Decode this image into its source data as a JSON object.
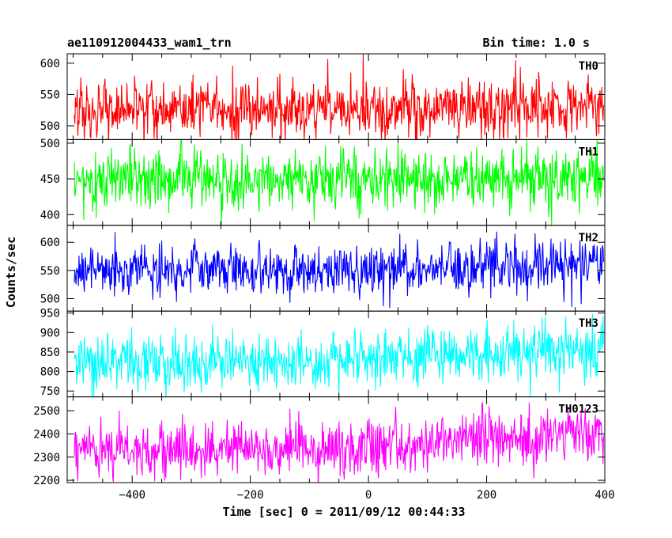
{
  "header": {
    "obs_id": "ae110912004433_wam1_trn",
    "bin_time": "Bin time: 1.0 s"
  },
  "axes": {
    "ylabel": "Counts/sec",
    "xlabel": "Time [sec] 0 = 2011/09/12 00:44:33"
  },
  "colors": {
    "TH0": "#ff0000",
    "TH1": "#00ff00",
    "TH2": "#0000ff",
    "TH3": "#00ffff",
    "TH0123": "#ff00ff",
    "frame": "#000000"
  },
  "chart_data": {
    "type": "line",
    "x_range": [
      -510,
      400
    ],
    "x_ticks": [
      -400,
      -200,
      0,
      200,
      400
    ],
    "x_tick_labels": [
      "−400",
      "−200",
      "0",
      "200",
      "400"
    ],
    "bin_seconds": 1.0,
    "panels": [
      {
        "name": "TH0",
        "ylim": [
          478,
          615
        ],
        "yticks": [
          500,
          550,
          600
        ],
        "trend": [
          [
            -500,
            525
          ],
          [
            -300,
            525
          ],
          [
            -100,
            530
          ],
          [
            0,
            525
          ],
          [
            100,
            528
          ],
          [
            200,
            530
          ],
          [
            300,
            533
          ],
          [
            400,
            533
          ]
        ],
        "noise_sd": 24
      },
      {
        "name": "TH1",
        "ylim": [
          385,
          505
        ],
        "yticks": [
          400,
          450,
          500
        ],
        "trend": [
          [
            -500,
            449
          ],
          [
            -300,
            451
          ],
          [
            -100,
            450
          ],
          [
            0,
            449
          ],
          [
            100,
            451
          ],
          [
            200,
            452
          ],
          [
            300,
            450
          ],
          [
            400,
            451
          ]
        ],
        "noise_sd": 21
      },
      {
        "name": "TH2",
        "ylim": [
          478,
          630
        ],
        "yticks": [
          500,
          550,
          600
        ],
        "trend": [
          [
            -500,
            550
          ],
          [
            -300,
            551
          ],
          [
            -100,
            552
          ],
          [
            0,
            552
          ],
          [
            100,
            554
          ],
          [
            200,
            556
          ],
          [
            300,
            558
          ],
          [
            400,
            559
          ]
        ],
        "noise_sd": 22
      },
      {
        "name": "TH3",
        "ylim": [
          735,
          955
        ],
        "yticks": [
          750,
          800,
          850,
          900,
          950
        ],
        "trend": [
          [
            -500,
            825
          ],
          [
            -300,
            827
          ],
          [
            -100,
            830
          ],
          [
            0,
            835
          ],
          [
            100,
            840
          ],
          [
            200,
            848
          ],
          [
            300,
            852
          ],
          [
            400,
            857
          ]
        ],
        "noise_sd": 36
      },
      {
        "name": "TH0123",
        "ylim": [
          2190,
          2560
        ],
        "yticks": [
          2200,
          2300,
          2400,
          2500
        ],
        "trend": [
          [
            -500,
            2325
          ],
          [
            -300,
            2330
          ],
          [
            -100,
            2338
          ],
          [
            0,
            2345
          ],
          [
            100,
            2360
          ],
          [
            200,
            2378
          ],
          [
            300,
            2392
          ],
          [
            400,
            2408
          ]
        ],
        "noise_sd": 58
      }
    ]
  }
}
